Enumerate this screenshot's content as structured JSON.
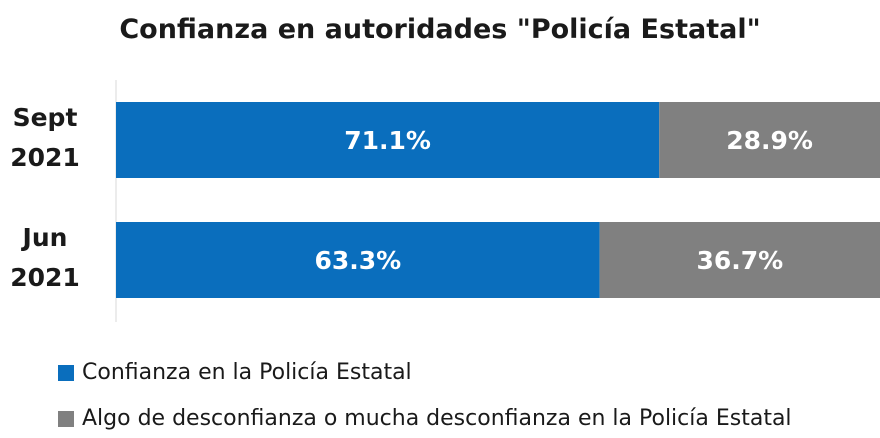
{
  "chart_data": {
    "type": "bar",
    "orientation": "horizontal",
    "stacked": true,
    "title": "Confianza en autoridades \"Policía Estatal\"",
    "categories": [
      [
        "Sept",
        "2021"
      ],
      [
        "Jun",
        "2021"
      ]
    ],
    "series": [
      {
        "name": "Confianza en la Policía Estatal",
        "color": "#0a6ebd",
        "values": [
          71.1,
          63.3
        ],
        "labels": [
          "71.1%",
          "63.3%"
        ]
      },
      {
        "name": "Algo de desconfianza o mucha desconfianza en la Policía Estatal",
        "color": "#808080",
        "values": [
          28.9,
          36.7
        ],
        "labels": [
          "28.9%",
          "36.7%"
        ]
      }
    ],
    "xlim": [
      0,
      100
    ],
    "grid": false,
    "legend_position": "bottom"
  }
}
